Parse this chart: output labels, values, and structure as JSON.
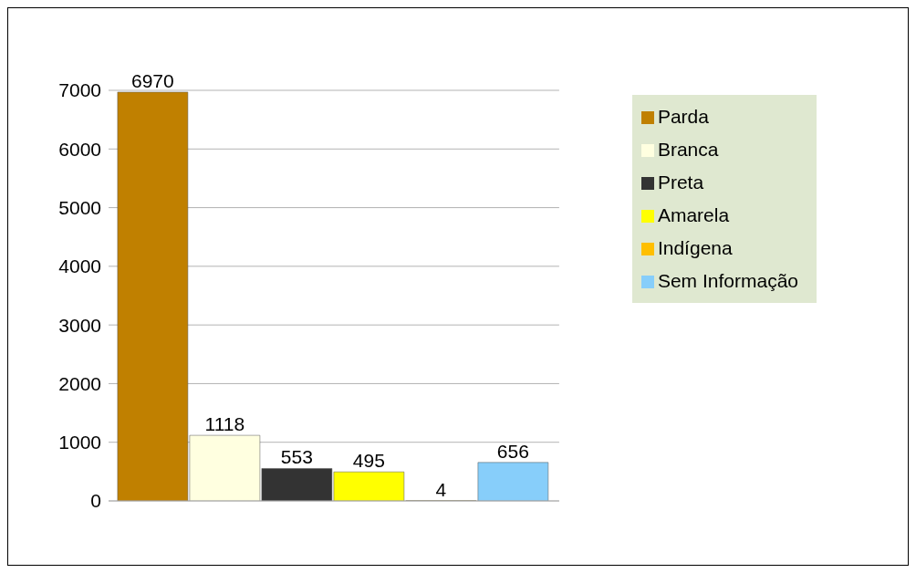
{
  "chart_data": {
    "type": "bar",
    "categories": [
      null
    ],
    "series": [
      {
        "name": "Parda",
        "color": "#c08000",
        "values": [
          6970
        ]
      },
      {
        "name": "Branca",
        "color": "#ffffe0",
        "values": [
          1118
        ]
      },
      {
        "name": "Preta",
        "color": "#333333",
        "values": [
          553
        ]
      },
      {
        "name": "Amarela",
        "color": "#ffff00",
        "values": [
          495
        ]
      },
      {
        "name": "Indígena",
        "color": "#ffbf00",
        "values": [
          4
        ]
      },
      {
        "name": "Sem Informação",
        "color": "#87cefa",
        "values": [
          656
        ]
      }
    ],
    "ylim": [
      0,
      7000
    ],
    "yticks": [
      0,
      1000,
      2000,
      3000,
      4000,
      5000,
      6000,
      7000
    ],
    "grid": "y",
    "legend": "top right",
    "data_labels": true
  }
}
